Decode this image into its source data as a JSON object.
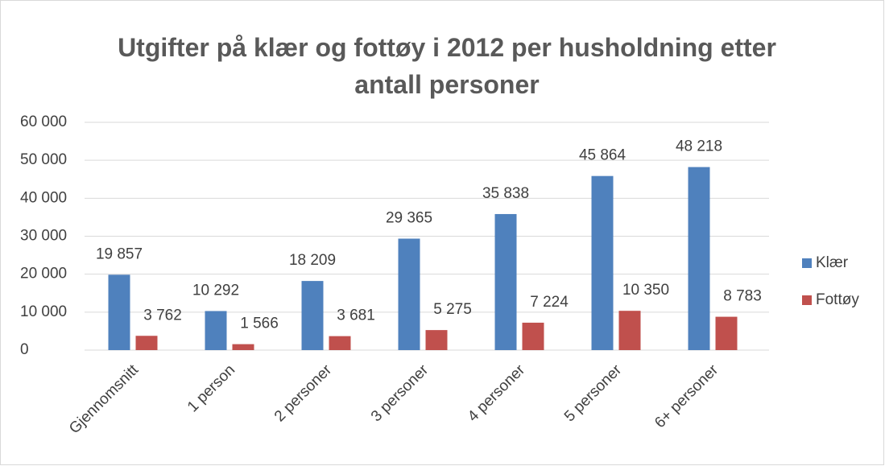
{
  "chart_data": {
    "type": "bar",
    "title": "Utgifter på klær og fottøy i 2012 per husholdning etter antall personer",
    "categories": [
      "Gjennomsnitt",
      "1 person",
      "2 personer",
      "3 personer",
      "4 personer",
      "5 personer",
      "6+ personer"
    ],
    "series": [
      {
        "name": "Klær",
        "color": "#4f81bd",
        "values": [
          19857,
          10292,
          18209,
          29365,
          35838,
          45864,
          48218
        ],
        "value_labels": [
          "19 857",
          "10 292",
          "18 209",
          "29 365",
          "35 838",
          "45 864",
          "48 218"
        ]
      },
      {
        "name": "Fottøy",
        "color": "#c0504d",
        "values": [
          3762,
          1566,
          3681,
          5275,
          7224,
          10350,
          8783
        ],
        "value_labels": [
          "3 762",
          "1 566",
          "3 681",
          "5 275",
          "7 224",
          "10 350",
          "8 783"
        ]
      }
    ],
    "ylim": [
      0,
      60000
    ],
    "yticks": [
      0,
      {
        "value": 10000,
        "label": "10 000"
      },
      {
        "value": 20000,
        "label": "20 000"
      },
      {
        "value": 30000,
        "label": "30 000"
      },
      {
        "value": 40000,
        "label": "40 000"
      },
      {
        "value": 50000,
        "label": "50 000"
      },
      {
        "value": 60000,
        "label": "60 000"
      }
    ],
    "grid": true,
    "legend": "right"
  }
}
